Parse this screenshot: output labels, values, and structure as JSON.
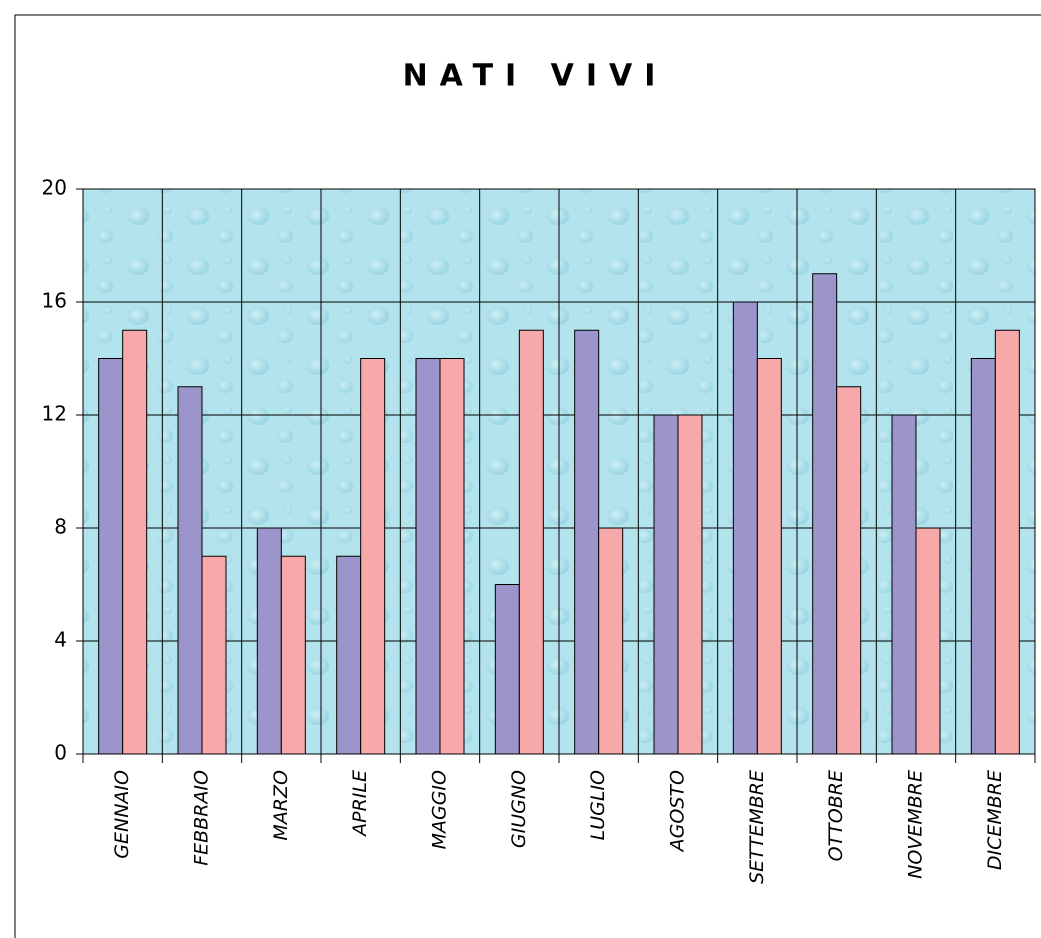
{
  "chart_data": {
    "type": "bar",
    "title": "NATI VIVI",
    "categories": [
      "GENNAIO",
      "FEBBRAIO",
      "MARZO",
      "APRILE",
      "MAGGIO",
      "GIUGNO",
      "LUGLIO",
      "AGOSTO",
      "SETTEMBRE",
      "OTTOBRE",
      "NOVEMBRE",
      "DICEMBRE"
    ],
    "series": [
      {
        "color": "#9b95cb",
        "values": [
          14,
          13,
          8,
          7,
          14,
          6,
          15,
          12,
          16,
          17,
          12,
          14
        ]
      },
      {
        "color": "#f7a8a8",
        "values": [
          15,
          7,
          7,
          14,
          14,
          15,
          8,
          12,
          14,
          13,
          8,
          15
        ]
      }
    ],
    "ylim": [
      0,
      20
    ],
    "yticks": [
      0,
      4,
      8,
      12,
      16,
      20
    ],
    "grid": true
  }
}
